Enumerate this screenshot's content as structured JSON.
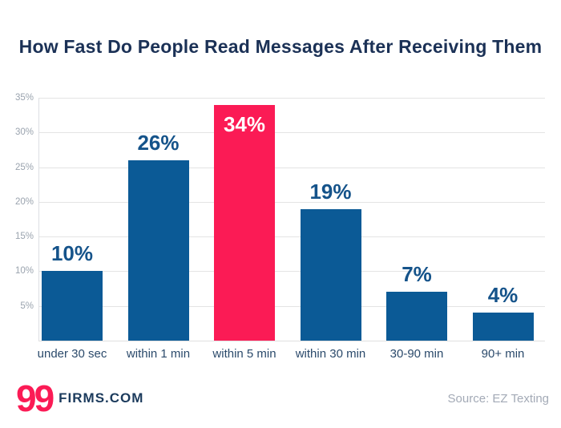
{
  "chart_data": {
    "type": "bar",
    "title": "How Fast Do People Read Messages After Receiving Them",
    "categories": [
      "under 30 sec",
      "within 1 min",
      "within 5 min",
      "within 30 min",
      "30-90 min",
      "90+ min"
    ],
    "values": [
      10,
      26,
      34,
      19,
      7,
      4
    ],
    "data_labels": [
      "10%",
      "26%",
      "34%",
      "19%",
      "7%",
      "4%"
    ],
    "highlighted_index": 2,
    "yticks": [
      "5%",
      "10%",
      "15%",
      "20%",
      "25%",
      "30%",
      "35%"
    ],
    "ytick_values": [
      5,
      10,
      15,
      20,
      25,
      30,
      35
    ],
    "ylim": [
      0,
      35
    ],
    "grid": true,
    "legend": "none",
    "xlabel": "",
    "ylabel": "",
    "colors": {
      "bar": "#0B5A96",
      "highlight_bar": "#FB1B55",
      "value_label": "#15538A",
      "highlight_value_label": "#FFFFFF",
      "category_label": "#2B4A6B",
      "tick_label": "#9AA3AE",
      "gridline": "#E4E4E4",
      "title": "#1B3156"
    }
  },
  "footer": {
    "logo_number": "99",
    "logo_text": "FIRMS.COM",
    "source": "Source: EZ Texting"
  }
}
